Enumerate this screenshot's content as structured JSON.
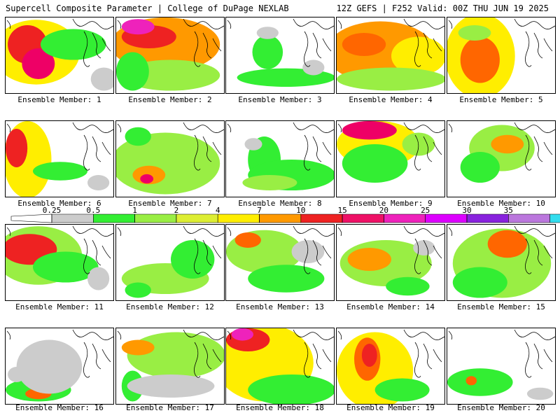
{
  "header": {
    "title": "Supercell Composite Parameter | College of DuPage NEXLAB",
    "run_info": "12Z GEFS | F252 Valid: 00Z THU JUN 19 2025"
  },
  "member_prefix": "Ensemble Member:",
  "members": [
    {
      "id": "1",
      "blobs": [
        [
          0.28,
          0.45,
          0.4,
          0.42,
          3
        ],
        [
          0.2,
          0.35,
          0.18,
          0.25,
          6
        ],
        [
          0.3,
          0.6,
          0.15,
          0.2,
          7
        ],
        [
          0.62,
          0.35,
          0.3,
          0.2,
          1
        ],
        [
          0.9,
          0.8,
          0.12,
          0.15,
          0
        ]
      ]
    },
    {
      "id": "2",
      "blobs": [
        [
          0.45,
          0.35,
          0.5,
          0.35,
          4
        ],
        [
          0.3,
          0.25,
          0.25,
          0.15,
          6
        ],
        [
          0.2,
          0.12,
          0.15,
          0.1,
          8
        ],
        [
          0.5,
          0.75,
          0.45,
          0.2,
          2
        ],
        [
          0.15,
          0.7,
          0.15,
          0.25,
          1
        ]
      ]
    },
    {
      "id": "3",
      "blobs": [
        [
          0.38,
          0.45,
          0.14,
          0.22,
          1
        ],
        [
          0.55,
          0.78,
          0.45,
          0.12,
          1
        ],
        [
          0.38,
          0.2,
          0.1,
          0.08,
          0
        ],
        [
          0.8,
          0.65,
          0.1,
          0.1,
          0
        ]
      ]
    },
    {
      "id": "4",
      "blobs": [
        [
          0.4,
          0.45,
          0.5,
          0.4,
          4
        ],
        [
          0.25,
          0.35,
          0.2,
          0.15,
          5
        ],
        [
          0.75,
          0.5,
          0.25,
          0.25,
          3
        ],
        [
          0.5,
          0.8,
          0.5,
          0.15,
          2
        ]
      ]
    },
    {
      "id": "5",
      "blobs": [
        [
          0.3,
          0.5,
          0.32,
          0.55,
          3
        ],
        [
          0.3,
          0.55,
          0.18,
          0.3,
          5
        ],
        [
          0.25,
          0.2,
          0.15,
          0.1,
          2
        ]
      ]
    },
    {
      "id": "6",
      "blobs": [
        [
          0.2,
          0.5,
          0.22,
          0.5,
          3
        ],
        [
          0.1,
          0.35,
          0.1,
          0.25,
          6
        ],
        [
          0.5,
          0.65,
          0.25,
          0.12,
          1
        ],
        [
          0.85,
          0.8,
          0.1,
          0.1,
          0
        ]
      ]
    },
    {
      "id": "7",
      "blobs": [
        [
          0.45,
          0.55,
          0.5,
          0.4,
          2
        ],
        [
          0.3,
          0.7,
          0.15,
          0.12,
          4
        ],
        [
          0.28,
          0.75,
          0.06,
          0.06,
          7
        ],
        [
          0.2,
          0.2,
          0.12,
          0.12,
          1
        ]
      ]
    },
    {
      "id": "8",
      "blobs": [
        [
          0.35,
          0.5,
          0.15,
          0.3,
          1
        ],
        [
          0.6,
          0.7,
          0.4,
          0.2,
          1
        ],
        [
          0.4,
          0.8,
          0.25,
          0.1,
          2
        ],
        [
          0.25,
          0.3,
          0.08,
          0.08,
          0
        ]
      ]
    },
    {
      "id": "9",
      "blobs": [
        [
          0.38,
          0.3,
          0.38,
          0.3,
          3
        ],
        [
          0.3,
          0.12,
          0.25,
          0.12,
          7
        ],
        [
          0.35,
          0.55,
          0.3,
          0.25,
          1
        ],
        [
          0.75,
          0.3,
          0.15,
          0.15,
          2
        ]
      ]
    },
    {
      "id": "10",
      "blobs": [
        [
          0.5,
          0.35,
          0.3,
          0.3,
          2
        ],
        [
          0.55,
          0.3,
          0.15,
          0.12,
          4
        ],
        [
          0.3,
          0.6,
          0.18,
          0.2,
          1
        ]
      ]
    },
    {
      "id": "11",
      "blobs": [
        [
          0.3,
          0.4,
          0.4,
          0.38,
          2
        ],
        [
          0.22,
          0.32,
          0.25,
          0.2,
          6
        ],
        [
          0.55,
          0.55,
          0.3,
          0.2,
          1
        ],
        [
          0.85,
          0.7,
          0.1,
          0.15,
          0
        ]
      ]
    },
    {
      "id": "12",
      "blobs": [
        [
          0.45,
          0.7,
          0.4,
          0.2,
          2
        ],
        [
          0.7,
          0.45,
          0.2,
          0.25,
          1
        ],
        [
          0.2,
          0.85,
          0.12,
          0.1,
          1
        ]
      ]
    },
    {
      "id": "13",
      "blobs": [
        [
          0.35,
          0.35,
          0.35,
          0.28,
          2
        ],
        [
          0.2,
          0.2,
          0.12,
          0.1,
          5
        ],
        [
          0.55,
          0.7,
          0.35,
          0.18,
          1
        ],
        [
          0.75,
          0.35,
          0.15,
          0.15,
          0
        ]
      ]
    },
    {
      "id": "14",
      "blobs": [
        [
          0.45,
          0.5,
          0.42,
          0.3,
          2
        ],
        [
          0.3,
          0.45,
          0.2,
          0.15,
          4
        ],
        [
          0.65,
          0.8,
          0.2,
          0.12,
          1
        ],
        [
          0.8,
          0.3,
          0.1,
          0.1,
          0
        ]
      ]
    },
    {
      "id": "15",
      "blobs": [
        [
          0.5,
          0.5,
          0.45,
          0.45,
          2
        ],
        [
          0.55,
          0.25,
          0.18,
          0.18,
          5
        ],
        [
          0.3,
          0.75,
          0.25,
          0.2,
          1
        ]
      ]
    },
    {
      "id": "16",
      "blobs": [
        [
          0.3,
          0.8,
          0.3,
          0.15,
          1
        ],
        [
          0.3,
          0.85,
          0.12,
          0.07,
          5
        ],
        [
          0.4,
          0.5,
          0.3,
          0.35,
          0
        ],
        [
          0.1,
          0.6,
          0.08,
          0.1,
          0
        ]
      ]
    },
    {
      "id": "17",
      "blobs": [
        [
          0.55,
          0.35,
          0.45,
          0.3,
          2
        ],
        [
          0.2,
          0.25,
          0.15,
          0.1,
          4
        ],
        [
          0.15,
          0.75,
          0.1,
          0.2,
          1
        ],
        [
          0.5,
          0.75,
          0.4,
          0.15,
          0
        ]
      ]
    },
    {
      "id": "18",
      "blobs": [
        [
          0.35,
          0.45,
          0.45,
          0.5,
          3
        ],
        [
          0.2,
          0.15,
          0.2,
          0.15,
          6
        ],
        [
          0.15,
          0.08,
          0.1,
          0.08,
          8
        ],
        [
          0.6,
          0.8,
          0.4,
          0.2,
          1
        ]
      ]
    },
    {
      "id": "19",
      "blobs": [
        [
          0.35,
          0.55,
          0.35,
          0.5,
          3
        ],
        [
          0.28,
          0.4,
          0.12,
          0.28,
          5
        ],
        [
          0.3,
          0.35,
          0.07,
          0.15,
          6
        ],
        [
          0.6,
          0.8,
          0.25,
          0.15,
          1
        ]
      ]
    },
    {
      "id": "20",
      "blobs": [
        [
          0.3,
          0.7,
          0.3,
          0.18,
          1
        ],
        [
          0.22,
          0.68,
          0.05,
          0.06,
          5
        ],
        [
          0.85,
          0.85,
          0.12,
          0.08,
          0
        ]
      ]
    }
  ],
  "legend": {
    "ticks": [
      "0.25",
      "0.5",
      "1",
      "2",
      "4",
      "7",
      "10",
      "15",
      "20",
      "25",
      "30",
      "35"
    ],
    "colors": [
      "#cccccc",
      "#33ee33",
      "#99ee44",
      "#ddee33",
      "#ffee00",
      "#ff9900",
      "#ee2222",
      "#ee1166",
      "#ee22bb",
      "#dd00ff",
      "#8822dd",
      "#bb77dd",
      "#33ddee"
    ]
  },
  "colors": {
    "fill_palette": [
      "#cccccc",
      "#33ee33",
      "#99ee44",
      "#ffee00",
      "#ff9900",
      "#ff6600",
      "#ee2222",
      "#ee0066",
      "#ee22bb"
    ],
    "border": "#000000",
    "coastline": "#000000"
  }
}
